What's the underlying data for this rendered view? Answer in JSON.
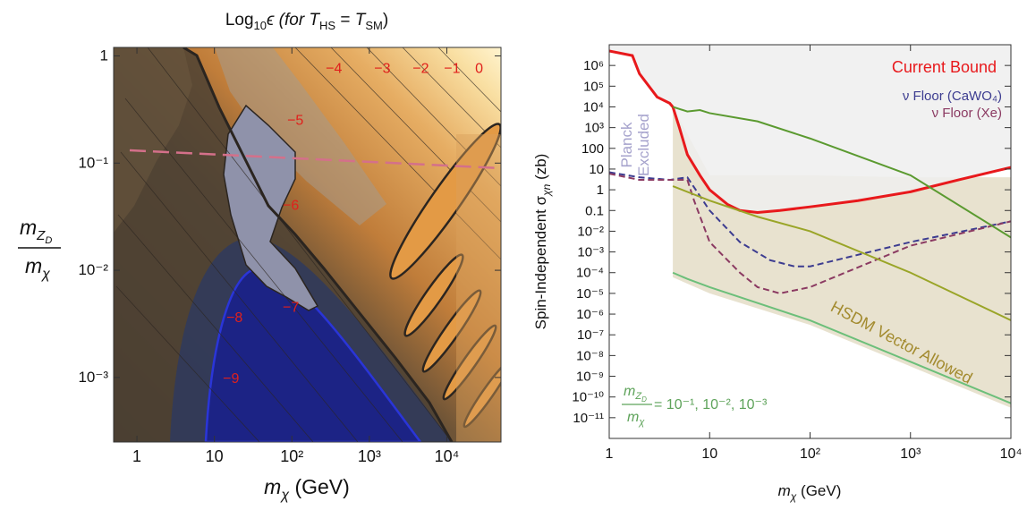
{
  "chart_data": [
    {
      "type": "contour",
      "title": [
        "Log",
        "10",
        "ϵ (for ",
        "T",
        "HS",
        " = ",
        "T",
        "SM",
        ")"
      ],
      "x_label": [
        "m",
        "χ",
        " (GeV)"
      ],
      "y_label": [
        "m",
        "Z",
        "D",
        "m",
        "χ"
      ],
      "xscale": "log",
      "yscale": "log",
      "xlim": [
        0.5,
        50000
      ],
      "ylim": [
        0.00025,
        1.2
      ],
      "xticks": [
        1,
        10,
        {
          "value": 100,
          "label": "10²"
        },
        {
          "value": 1000,
          "label": "10³"
        },
        {
          "value": 10000,
          "label": "10⁴"
        }
      ],
      "yticks": [
        {
          "value": 0.001,
          "label": "10⁻³"
        },
        {
          "value": 0.01,
          "label": "10⁻²"
        },
        {
          "value": 0.1,
          "label": "10⁻¹"
        },
        1
      ],
      "label_color": "#e0201c",
      "contour_labels": [
        {
          "value": -4,
          "label": "−4",
          "x": 349,
          "y": 0.78
        },
        {
          "value": -3,
          "label": "−3",
          "x": 1470,
          "y": 0.78
        },
        {
          "value": -2,
          "label": "−2",
          "x": 4620,
          "y": 0.78
        },
        {
          "value": -1,
          "label": "−1",
          "x": 11700,
          "y": 0.78
        },
        {
          "value": 0,
          "label": "0",
          "x": 26100,
          "y": 0.78
        },
        {
          "value": -5,
          "label": "−5",
          "x": 111,
          "y": 0.256
        },
        {
          "value": -6,
          "label": "−6",
          "x": 97,
          "y": 0.041
        },
        {
          "value": -7,
          "label": "−7",
          "x": 97,
          "y": 0.0046
        },
        {
          "value": -8,
          "label": "−8",
          "x": 18.2,
          "y": 0.0037
        },
        {
          "value": -9,
          "label": "−9",
          "x": 16.4,
          "y": 0.001
        }
      ]
    },
    {
      "type": "line",
      "x_label": [
        "m",
        "χ",
        " (GeV)"
      ],
      "y_label": [
        "Spin-Independent σ",
        "χn",
        " (zb)"
      ],
      "xscale": "log",
      "yscale": "log",
      "xlim": [
        1,
        10000
      ],
      "ylim": [
        1e-12,
        10000000
      ],
      "xticks": [
        1,
        10,
        {
          "value": 100,
          "label": "10²"
        },
        {
          "value": 1000,
          "label": "10³"
        },
        {
          "value": 10000,
          "label": "10⁴"
        }
      ],
      "yticks": [
        {
          "value": 1e-11,
          "label": "10⁻¹¹"
        },
        {
          "value": 1e-10,
          "label": "10⁻¹⁰"
        },
        {
          "value": 1e-09,
          "label": "10⁻⁹"
        },
        {
          "value": 1e-08,
          "label": "10⁻⁸"
        },
        {
          "value": 1e-07,
          "label": "10⁻⁷"
        },
        {
          "value": 1e-06,
          "label": "10⁻⁶"
        },
        {
          "value": 1e-05,
          "label": "10⁻⁵"
        },
        {
          "value": 0.0001,
          "label": "10⁻⁴"
        },
        {
          "value": 0.001,
          "label": "10⁻³"
        },
        {
          "value": 0.01,
          "label": "10⁻²"
        },
        0.1,
        1,
        10,
        100,
        {
          "value": 1000,
          "label": "10³"
        },
        {
          "value": 10000,
          "label": "10⁴"
        },
        {
          "value": 100000,
          "label": "10⁵"
        },
        {
          "value": 1000000,
          "label": "10⁶"
        }
      ],
      "excluded_color": "#efefef",
      "band": {
        "name": "HSDM Vector Allowed",
        "color": "#e8e2cf",
        "text_color": "#a38b2f",
        "x": [
          4.3,
          10,
          100,
          1000,
          10000
        ],
        "upper": [
          10000,
          5,
          5,
          4,
          4
        ],
        "lower": [
          6e-05,
          1e-05,
          3e-07,
          3e-09,
          3e-11
        ]
      },
      "planck_label": [
        "Planck",
        "Excluded"
      ],
      "planck_color": "#a5a2cc",
      "annotation": [
        "m",
        "Z",
        "D",
        "m",
        "χ",
        " = 10⁻¹, 10⁻², 10⁻³"
      ],
      "annotation_color": "#5ea35a",
      "series": [
        {
          "name": "Current Bound",
          "color": "#e8191c",
          "width": 3,
          "x": [
            1,
            1.7,
            2,
            3,
            4,
            4.3,
            5,
            6,
            8,
            10,
            15,
            20,
            30,
            50,
            100,
            300,
            1000,
            3000,
            10000
          ],
          "values": [
            5000000,
            3000000,
            400000,
            30000,
            15000,
            10000,
            1000,
            50,
            5,
            1,
            0.2,
            0.1,
            0.08,
            0.1,
            0.15,
            0.3,
            0.8,
            3,
            12
          ]
        },
        {
          "name": "ν Floor (CaWO₄)",
          "color": "#3c3c90",
          "width": 2,
          "dash": true,
          "x": [
            1,
            2,
            4,
            6,
            8,
            10,
            20,
            40,
            70,
            100,
            1000,
            10000
          ],
          "values": [
            7,
            4,
            3,
            4,
            0.5,
            0.1,
            0.003,
            0.0004,
            0.0002,
            0.0002,
            0.003,
            0.03
          ]
        },
        {
          "name": "ν Floor (Xe)",
          "color": "#8b3a62",
          "width": 2,
          "dash": true,
          "x": [
            1,
            2,
            4,
            6,
            7,
            10,
            20,
            30,
            50,
            100,
            1000,
            10000
          ],
          "values": [
            6,
            3,
            3,
            3,
            0.3,
            0.003,
            0.0001,
            2e-05,
            1e-05,
            2e-05,
            0.002,
            0.03
          ]
        },
        {
          "color": "#5b9a30",
          "width": 2,
          "x": [
            4.3,
            6,
            8,
            10,
            30,
            100,
            1000,
            10000
          ],
          "values": [
            10000,
            6000,
            7000,
            5000,
            2000,
            300,
            5,
            0.005
          ]
        },
        {
          "color": "#9aa528",
          "width": 2,
          "x": [
            4.3,
            10,
            30,
            100,
            1000,
            10000
          ],
          "values": [
            1.5,
            0.3,
            0.05,
            0.01,
            0.0001,
            5e-07
          ]
        },
        {
          "color": "#6cbf7a",
          "width": 2,
          "x": [
            4.3,
            6,
            10,
            100,
            1000,
            10000
          ],
          "values": [
            0.0001,
            5e-05,
            2e-05,
            5e-07,
            5e-09,
            5e-11
          ]
        }
      ]
    }
  ]
}
